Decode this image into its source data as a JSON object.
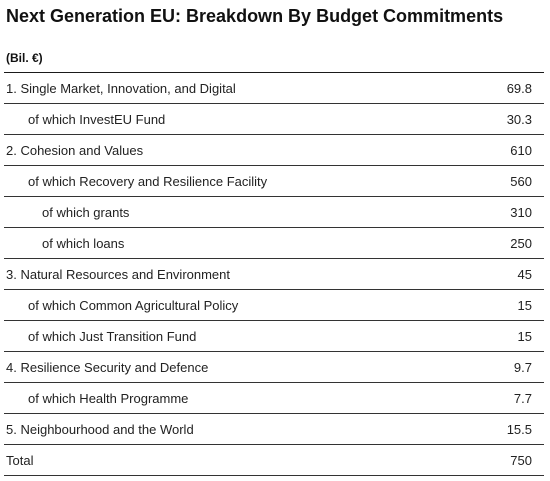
{
  "title": "Next Generation EU: Breakdown By Budget Commitments",
  "unit_label": "(Bil. €)",
  "rows": [
    {
      "label": "1. Single Market, Innovation, and Digital",
      "value": "69.8",
      "level": 0
    },
    {
      "label": "of which InvestEU Fund",
      "value": "30.3",
      "level": 1
    },
    {
      "label": "2. Cohesion and Values",
      "value": "610",
      "level": 0
    },
    {
      "label": "of which Recovery and Resilience Facility",
      "value": "560",
      "level": 1
    },
    {
      "label": "of which grants",
      "value": "310",
      "level": 2
    },
    {
      "label": "of which loans",
      "value": "250",
      "level": 2
    },
    {
      "label": "3. Natural Resources and Environment",
      "value": "45",
      "level": 0
    },
    {
      "label": "of which Common Agricultural Policy",
      "value": "15",
      "level": 1
    },
    {
      "label": "of which Just Transition Fund",
      "value": "15",
      "level": 1
    },
    {
      "label": "4. Resilience Security and Defence",
      "value": "9.7",
      "level": 0
    },
    {
      "label": "of which Health Programme",
      "value": "7.7",
      "level": 1
    },
    {
      "label": "5. Neighbourhood and the World",
      "value": "15.5",
      "level": 0
    },
    {
      "label": "Total",
      "value": "750",
      "level": 0
    }
  ]
}
